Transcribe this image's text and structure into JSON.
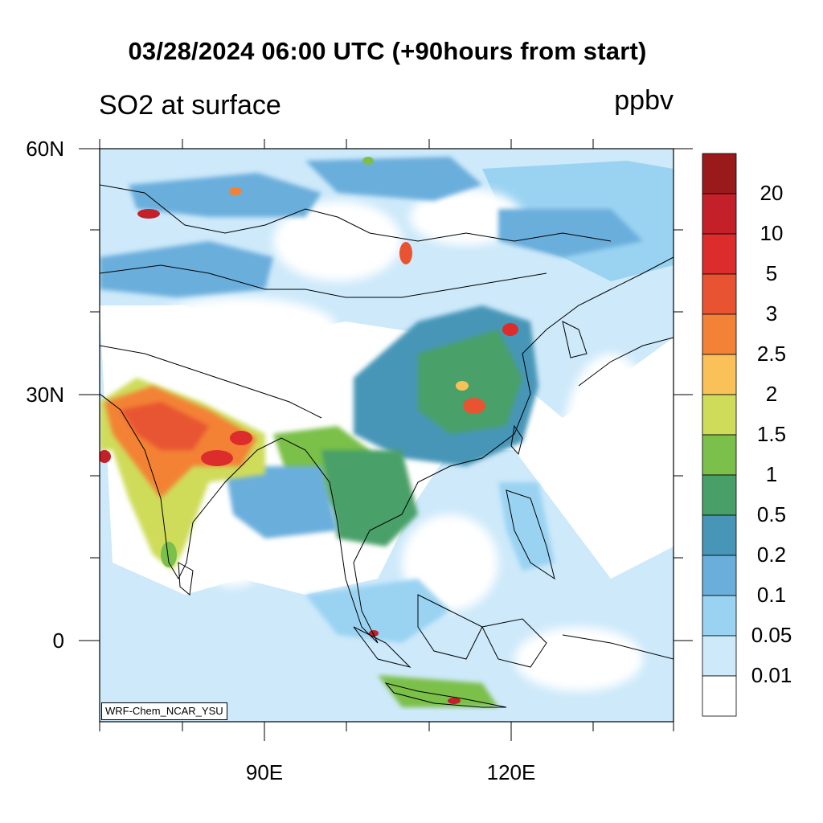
{
  "title": "03/28/2024 06:00 UTC (+90hours from start)",
  "subtitle_left": "SO2 at surface",
  "units": "ppbv",
  "credit": "WRF-Chem_NCAR_YSU",
  "lat_labels": [
    "60N",
    "30N",
    "0"
  ],
  "lon_labels": [
    "90E",
    "120E"
  ],
  "colorbar": {
    "levels": [
      "20",
      "10",
      "5",
      "3",
      "2.5",
      "2",
      "1.5",
      "1",
      "0.5",
      "0.2",
      "0.1",
      "0.05",
      "0.01"
    ],
    "colors": [
      "#9a1a1c",
      "#c4202a",
      "#dd2c2c",
      "#e85432",
      "#f38236",
      "#f9c158",
      "#cfdc5a",
      "#7ac04a",
      "#48a068",
      "#4796b8",
      "#6aaedc",
      "#9ad3f2",
      "#cde9fa",
      "#ffffff"
    ]
  },
  "map": {
    "lon_range": [
      70,
      140
    ],
    "lat_range": [
      -10,
      60
    ],
    "field": "SO2 surface concentration"
  }
}
